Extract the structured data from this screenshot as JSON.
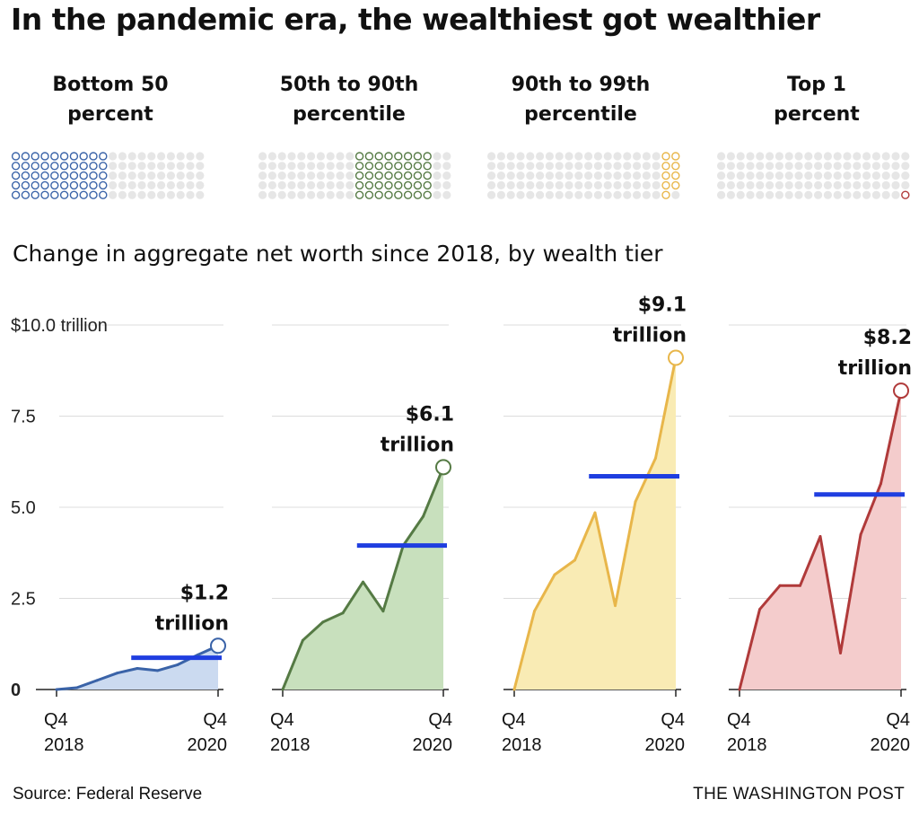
{
  "headline": "In the pandemic era, the wealthiest got wealthier",
  "tiers": [
    {
      "label_line1": "Bottom 50",
      "label_line2": "percent",
      "color": "#3a63a8",
      "fill": "#cbdaf0",
      "marker_fill": "#ffffff"
    },
    {
      "label_line1": "50th to 90th",
      "label_line2": "percentile",
      "color": "#557a44",
      "fill": "#c8e0bd",
      "marker_fill": "#ffffff"
    },
    {
      "label_line1": "90th to 99th",
      "label_line2": "percentile",
      "color": "#e8b64a",
      "fill": "#f9ebb4",
      "marker_fill": "#ffffff"
    },
    {
      "label_line1": "Top 1",
      "label_line2": "percent",
      "color": "#b03a3a",
      "fill": "#f4cccc",
      "marker_fill": "#ffffff"
    }
  ],
  "dot_grid": {
    "empty_color": "#e6e6e6",
    "population_percent": [
      {
        "from": 0,
        "to": 50
      },
      {
        "from": 50,
        "to": 90
      },
      {
        "from": 90,
        "to": 99
      },
      {
        "from": 99,
        "to": 100
      }
    ]
  },
  "subtitle": "Change in aggregate net worth since 2018, by wealth tier",
  "source": "Source: Federal Reserve",
  "credit": "THE WASHINGTON POST",
  "average_line_color": "#1f3ee0",
  "chart_data": {
    "type": "area",
    "title": "Change in aggregate net worth since 2018, by wealth tier",
    "y_unit": "trillion",
    "ylim": [
      0,
      10
    ],
    "y_ticks": [
      {
        "value": 0,
        "label": "0"
      },
      {
        "value": 2.5,
        "label": "2.5"
      },
      {
        "value": 5,
        "label": "5.0"
      },
      {
        "value": 7.5,
        "label": "7.5"
      },
      {
        "value": 10,
        "label": "$10.0 trillion"
      }
    ],
    "x_tick_labels": [
      {
        "line1": "Q4",
        "line2": "2018"
      },
      {
        "line1": "Q4",
        "line2": "2020"
      }
    ],
    "x": [
      "2018 Q4",
      "2019 Q1",
      "2019 Q2",
      "2019 Q3",
      "2019 Q4",
      "2020 Q1",
      "2020 Q2",
      "2020 Q3",
      "2020 Q4"
    ],
    "grid": true,
    "series": [
      {
        "name": "Bottom 50 percent",
        "values": [
          0,
          0.05,
          0.25,
          0.45,
          0.58,
          0.52,
          0.68,
          0.95,
          1.2
        ],
        "average": 0.87,
        "end_label_1": "$1.2",
        "end_label_2": "trillion"
      },
      {
        "name": "50th to 90th percentile",
        "values": [
          0,
          1.35,
          1.85,
          2.1,
          2.95,
          2.15,
          3.95,
          4.75,
          6.1
        ],
        "average": 3.95,
        "end_label_1": "$6.1",
        "end_label_2": "trillion"
      },
      {
        "name": "90th to 99th percentile",
        "values": [
          0,
          2.15,
          3.15,
          3.55,
          4.85,
          2.3,
          5.15,
          6.35,
          9.1
        ],
        "average": 5.85,
        "end_label_1": "$9.1",
        "end_label_2": "trillion"
      },
      {
        "name": "Top 1 percent",
        "values": [
          0,
          2.2,
          2.85,
          2.85,
          4.2,
          1.0,
          4.25,
          5.65,
          8.2
        ],
        "average": 5.35,
        "end_label_1": "$8.2",
        "end_label_2": "trillion"
      }
    ]
  }
}
